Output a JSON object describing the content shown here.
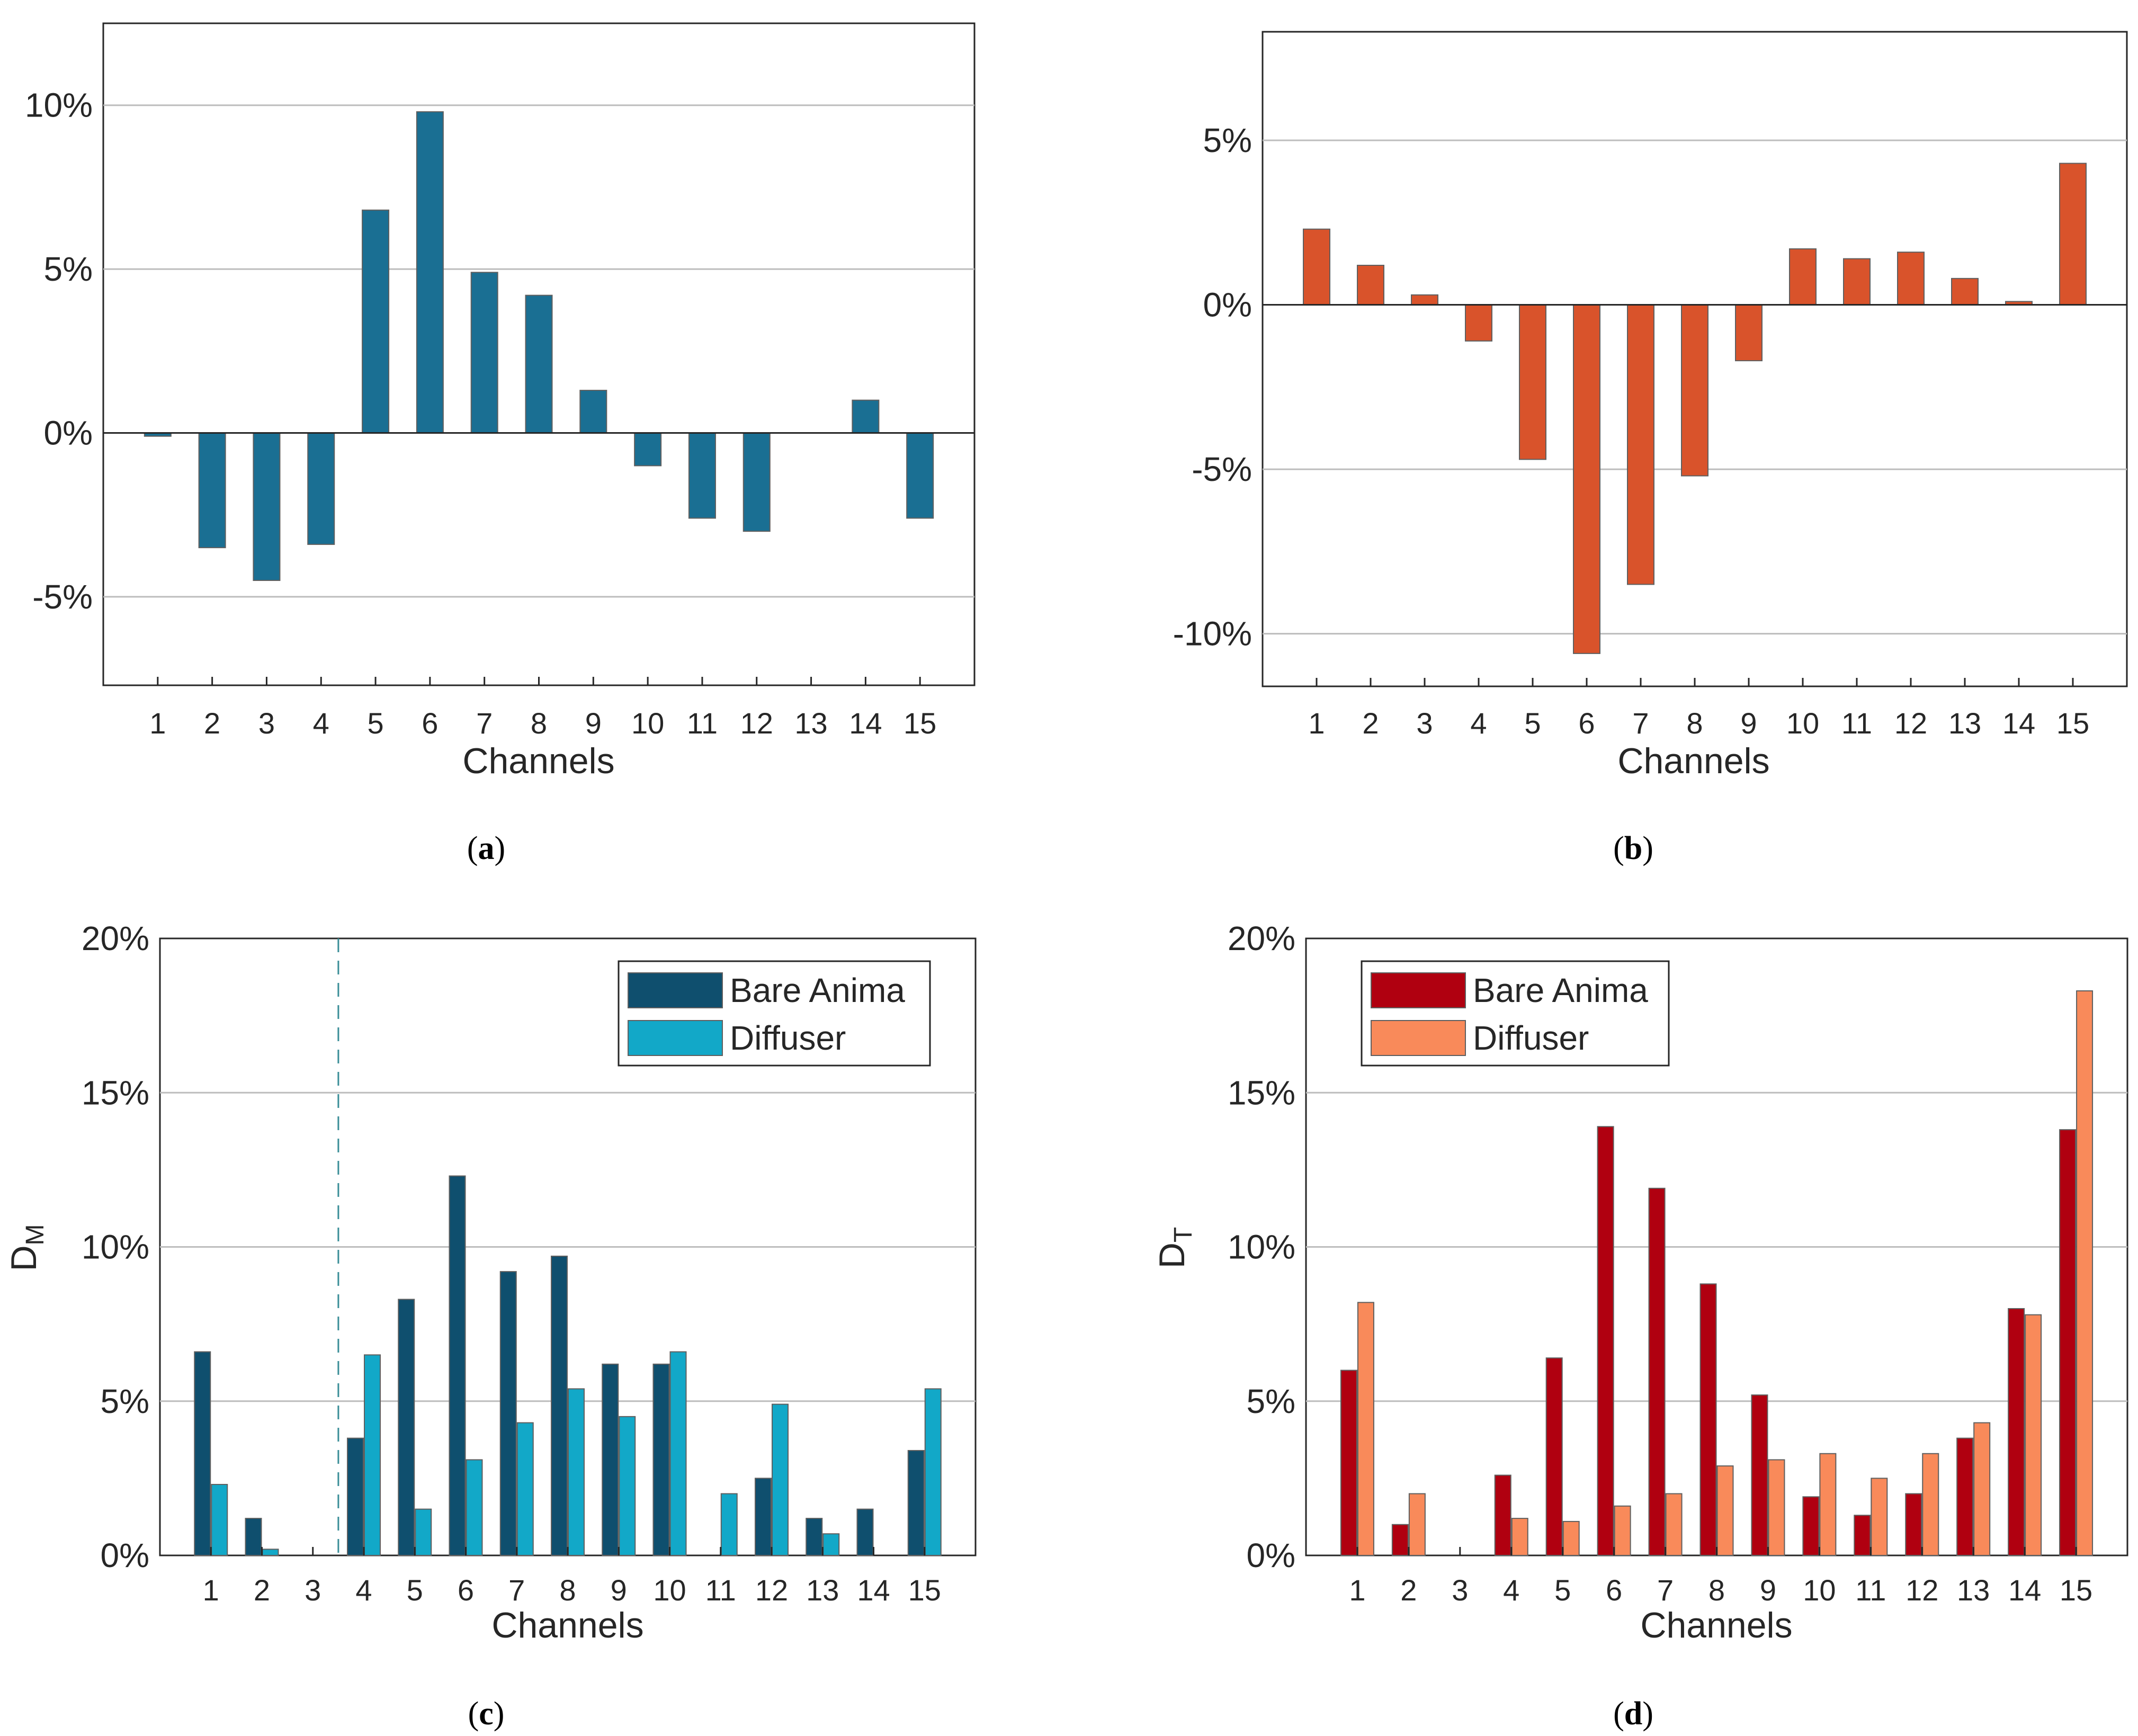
{
  "colors": {
    "a": "#1a6f93",
    "b": "#d9532b",
    "c_bare": "#0f4f6e",
    "c_diff": "#12a8c8",
    "d_bare": "#b00010",
    "d_diff": "#f98a5a",
    "grid": "#bdbdbd",
    "axis": "#262626"
  },
  "chart_data": [
    {
      "id": "a",
      "type": "bar",
      "caption": "a",
      "xlabel": "Channels",
      "ylabel": "",
      "categories": [
        "1",
        "2",
        "3",
        "4",
        "5",
        "6",
        "7",
        "8",
        "9",
        "10",
        "11",
        "12",
        "13",
        "14",
        "15"
      ],
      "series": [
        {
          "name": "",
          "values": [
            -0.1,
            -3.5,
            -4.5,
            -3.4,
            6.8,
            9.8,
            4.9,
            4.2,
            1.3,
            -1.0,
            -2.6,
            -3.0,
            0.0,
            1.0,
            -2.6
          ]
        }
      ],
      "ylim": [
        -7.7,
        12.5
      ],
      "yticks": [
        -5,
        0,
        5,
        10
      ],
      "ytick_labels": [
        "-5%",
        "0%",
        "5%",
        "10%"
      ],
      "grid": true,
      "zero_line": true
    },
    {
      "id": "b",
      "type": "bar",
      "caption": "b",
      "xlabel": "Channels",
      "ylabel": "",
      "categories": [
        "1",
        "2",
        "3",
        "4",
        "5",
        "6",
        "7",
        "8",
        "9",
        "10",
        "11",
        "12",
        "13",
        "14",
        "15"
      ],
      "series": [
        {
          "name": "",
          "values": [
            2.3,
            1.2,
            0.3,
            -1.1,
            -4.7,
            -10.6,
            -8.5,
            -5.2,
            -1.7,
            1.7,
            1.4,
            1.6,
            0.8,
            0.1,
            4.3
          ]
        }
      ],
      "ylim": [
        -11.6,
        8.3
      ],
      "yticks": [
        -10,
        -5,
        0,
        5
      ],
      "ytick_labels": [
        "-10%",
        "-5%",
        "0%",
        "5%"
      ],
      "grid": true,
      "zero_line": true
    },
    {
      "id": "c",
      "type": "bar",
      "caption": "c",
      "xlabel": "Channels",
      "ylabel": "D",
      "ylabel_sub": "M",
      "categories": [
        "1",
        "2",
        "3",
        "4",
        "5",
        "6",
        "7",
        "8",
        "9",
        "10",
        "11",
        "12",
        "13",
        "14",
        "15"
      ],
      "series": [
        {
          "name": "Bare Anima",
          "values": [
            6.6,
            1.2,
            0.0,
            3.8,
            8.3,
            12.3,
            9.2,
            9.7,
            6.2,
            6.2,
            0.0,
            2.5,
            1.2,
            1.5,
            3.4
          ]
        },
        {
          "name": "Diffuser",
          "values": [
            2.3,
            0.2,
            0.0,
            6.5,
            1.5,
            3.1,
            4.3,
            5.4,
            4.5,
            6.6,
            2.0,
            4.9,
            0.7,
            0.0,
            5.4
          ]
        }
      ],
      "ylim": [
        0,
        20
      ],
      "yticks": [
        0,
        5,
        10,
        15,
        20
      ],
      "ytick_labels": [
        "0%",
        "5%",
        "10%",
        "15%",
        "20%"
      ],
      "grid": true,
      "legend": "top-right",
      "vline_after_category": 3
    },
    {
      "id": "d",
      "type": "bar",
      "caption": "d",
      "xlabel": "Channels",
      "ylabel": "D",
      "ylabel_sub": "T",
      "categories": [
        "1",
        "2",
        "3",
        "4",
        "5",
        "6",
        "7",
        "8",
        "9",
        "10",
        "11",
        "12",
        "13",
        "14",
        "15"
      ],
      "series": [
        {
          "name": "Bare Anima",
          "values": [
            6.0,
            1.0,
            0.0,
            2.6,
            6.4,
            13.9,
            11.9,
            8.8,
            5.2,
            1.9,
            1.3,
            2.0,
            3.8,
            8.0,
            13.8
          ]
        },
        {
          "name": "Diffuser",
          "values": [
            8.2,
            2.0,
            0.0,
            1.2,
            1.1,
            1.6,
            2.0,
            2.9,
            3.1,
            3.3,
            2.5,
            3.3,
            4.3,
            7.8,
            18.3
          ]
        }
      ],
      "ylim": [
        0,
        20
      ],
      "yticks": [
        0,
        5,
        10,
        15,
        20
      ],
      "ytick_labels": [
        "0%",
        "5%",
        "10%",
        "15%",
        "20%"
      ],
      "grid": true,
      "legend": "top-left"
    }
  ]
}
